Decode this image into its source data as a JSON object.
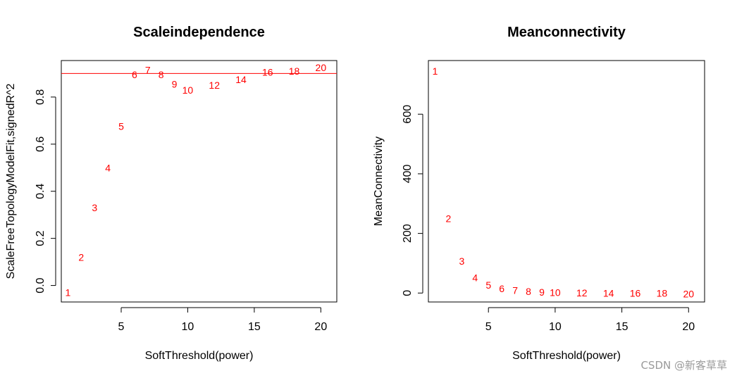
{
  "chart_data": [
    {
      "type": "scatter",
      "title": "Scaleindependence",
      "xlabel": "SoftThreshold(power)",
      "ylabel": "ScaleFreeTopologyModelFit,signedR^2",
      "xlim": [
        0.5,
        21.2
      ],
      "ylim": [
        -0.07,
        0.955
      ],
      "xticks": [
        5,
        10,
        15,
        20
      ],
      "yticks": [
        0.0,
        0.2,
        0.4,
        0.6,
        0.8
      ],
      "ytick_labels": [
        "0.0",
        "0.2",
        "0.4",
        "0.6",
        "0.8"
      ],
      "hline": 0.9,
      "color": "#ff0000",
      "points": [
        {
          "label": "1",
          "x": 1,
          "y": -0.03
        },
        {
          "label": "2",
          "x": 2,
          "y": 0.12
        },
        {
          "label": "3",
          "x": 3,
          "y": 0.33
        },
        {
          "label": "4",
          "x": 4,
          "y": 0.5
        },
        {
          "label": "5",
          "x": 5,
          "y": 0.675
        },
        {
          "label": "6",
          "x": 6,
          "y": 0.895
        },
        {
          "label": "7",
          "x": 7,
          "y": 0.915
        },
        {
          "label": "8",
          "x": 8,
          "y": 0.895
        },
        {
          "label": "9",
          "x": 9,
          "y": 0.855
        },
        {
          "label": "10",
          "x": 10,
          "y": 0.83
        },
        {
          "label": "12",
          "x": 12,
          "y": 0.85
        },
        {
          "label": "14",
          "x": 14,
          "y": 0.875
        },
        {
          "label": "16",
          "x": 16,
          "y": 0.905
        },
        {
          "label": "18",
          "x": 18,
          "y": 0.91
        },
        {
          "label": "20",
          "x": 20,
          "y": 0.925
        }
      ]
    },
    {
      "type": "scatter",
      "title": "Meanconnectivity",
      "xlabel": "SoftThreshold(power)",
      "ylabel": "MeanConnectivity",
      "xlim": [
        0.5,
        21.2
      ],
      "ylim": [
        -30,
        780
      ],
      "xticks": [
        5,
        10,
        15,
        20
      ],
      "yticks": [
        0,
        200,
        400,
        600
      ],
      "ytick_labels": [
        "0",
        "200",
        "400",
        "600"
      ],
      "color": "#ff0000",
      "points": [
        {
          "label": "1",
          "x": 1,
          "y": 745
        },
        {
          "label": "2",
          "x": 2,
          "y": 250
        },
        {
          "label": "3",
          "x": 3,
          "y": 107
        },
        {
          "label": "4",
          "x": 4,
          "y": 52
        },
        {
          "label": "5",
          "x": 5,
          "y": 27
        },
        {
          "label": "6",
          "x": 6,
          "y": 15
        },
        {
          "label": "7",
          "x": 7,
          "y": 9
        },
        {
          "label": "8",
          "x": 8,
          "y": 5
        },
        {
          "label": "9",
          "x": 9,
          "y": 3
        },
        {
          "label": "10",
          "x": 10,
          "y": 2
        },
        {
          "label": "12",
          "x": 12,
          "y": 1
        },
        {
          "label": "14",
          "x": 14,
          "y": 0
        },
        {
          "label": "16",
          "x": 16,
          "y": 0
        },
        {
          "label": "18",
          "x": 18,
          "y": 0
        },
        {
          "label": "20",
          "x": 20,
          "y": -3
        }
      ]
    }
  ],
  "watermark": "CSDN @新客草草"
}
